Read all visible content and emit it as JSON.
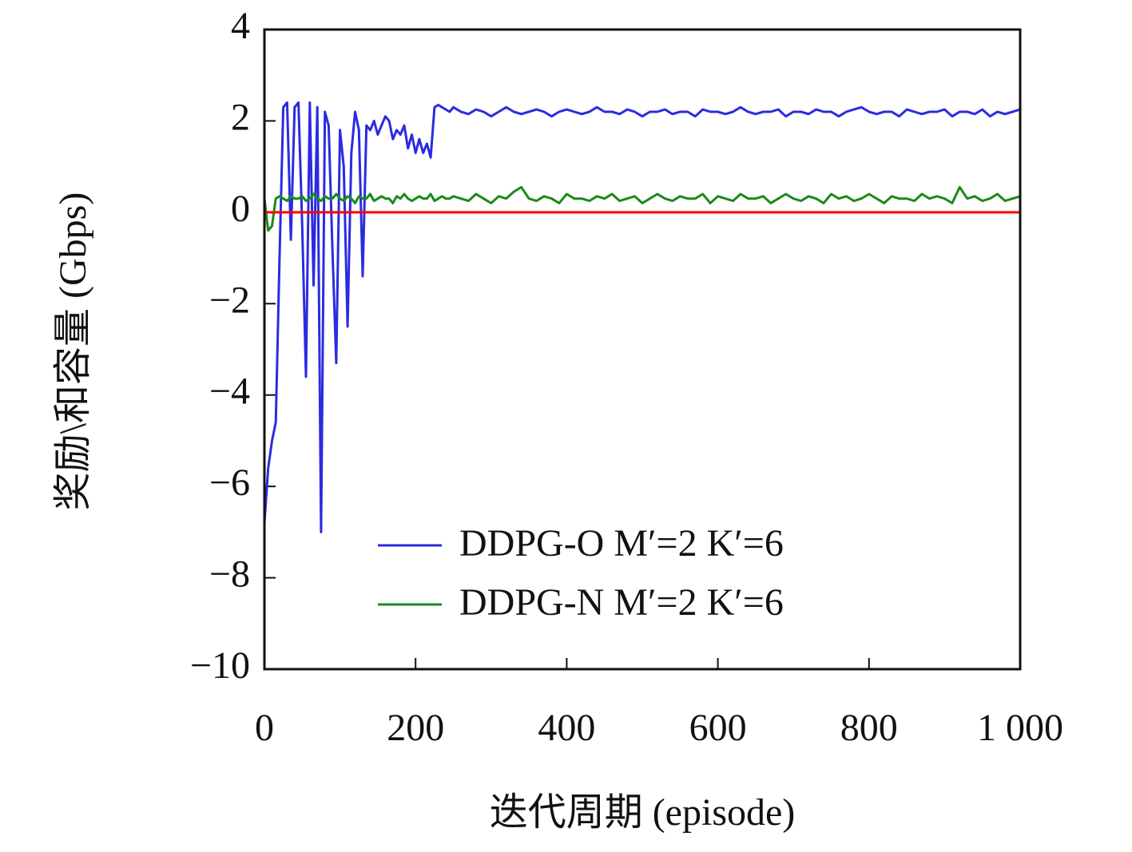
{
  "chart_data": {
    "type": "line",
    "xlabel": "迭代周期 (episode)",
    "ylabel": "奖励\\和容量 (Gbps)",
    "x": [
      0,
      5,
      10,
      15,
      20,
      25,
      30,
      35,
      40,
      45,
      50,
      55,
      60,
      65,
      70,
      75,
      80,
      85,
      90,
      95,
      100,
      105,
      110,
      115,
      120,
      125,
      130,
      135,
      140,
      145,
      150,
      155,
      160,
      165,
      170,
      175,
      180,
      185,
      190,
      195,
      200,
      205,
      210,
      215,
      220,
      225,
      230,
      235,
      240,
      245,
      250,
      260,
      270,
      280,
      290,
      300,
      310,
      320,
      330,
      340,
      350,
      360,
      370,
      380,
      390,
      400,
      410,
      420,
      430,
      440,
      450,
      460,
      470,
      480,
      490,
      500,
      510,
      520,
      530,
      540,
      550,
      560,
      570,
      580,
      590,
      600,
      610,
      620,
      630,
      640,
      650,
      660,
      670,
      680,
      690,
      700,
      710,
      720,
      730,
      740,
      750,
      760,
      770,
      780,
      790,
      800,
      810,
      820,
      830,
      840,
      850,
      860,
      870,
      880,
      890,
      900,
      910,
      920,
      930,
      940,
      950,
      960,
      970,
      980,
      990,
      1000
    ],
    "series": [
      {
        "name": "DDPG-O M′=2 K′=6",
        "color": "#2b2be0",
        "values": [
          -6.8,
          -5.6,
          -5.0,
          -4.6,
          -1.0,
          2.3,
          2.4,
          -0.6,
          2.3,
          2.4,
          -0.3,
          -3.6,
          2.4,
          -1.6,
          2.3,
          -7.0,
          2.2,
          1.9,
          -0.8,
          -3.3,
          1.8,
          1.0,
          -2.5,
          1.3,
          2.2,
          1.8,
          -1.4,
          1.9,
          1.8,
          2.0,
          1.7,
          1.9,
          2.1,
          2.0,
          1.6,
          1.8,
          1.7,
          1.9,
          1.4,
          1.7,
          1.3,
          1.6,
          1.3,
          1.5,
          1.2,
          2.3,
          2.35,
          2.3,
          2.25,
          2.2,
          2.3,
          2.2,
          2.15,
          2.25,
          2.2,
          2.1,
          2.2,
          2.3,
          2.2,
          2.15,
          2.2,
          2.25,
          2.2,
          2.1,
          2.2,
          2.25,
          2.2,
          2.15,
          2.2,
          2.3,
          2.2,
          2.2,
          2.15,
          2.25,
          2.2,
          2.1,
          2.2,
          2.2,
          2.25,
          2.15,
          2.2,
          2.2,
          2.1,
          2.25,
          2.2,
          2.2,
          2.15,
          2.2,
          2.3,
          2.2,
          2.15,
          2.2,
          2.2,
          2.25,
          2.1,
          2.2,
          2.2,
          2.15,
          2.25,
          2.2,
          2.2,
          2.1,
          2.2,
          2.25,
          2.3,
          2.2,
          2.15,
          2.2,
          2.2,
          2.1,
          2.25,
          2.2,
          2.15,
          2.2,
          2.2,
          2.25,
          2.1,
          2.2,
          2.2,
          2.15,
          2.25,
          2.1,
          2.2,
          2.15,
          2.2,
          2.25
        ]
      },
      {
        "name": "DDPG-N M′=2 K′=6",
        "color": "#1a8a1a",
        "values": [
          0.3,
          -0.4,
          -0.3,
          0.3,
          0.35,
          0.3,
          0.25,
          0.35,
          0.3,
          0.3,
          0.35,
          0.25,
          0.3,
          0.4,
          0.3,
          0.25,
          0.35,
          0.3,
          0.3,
          0.4,
          0.3,
          0.25,
          0.35,
          0.3,
          0.2,
          0.35,
          0.3,
          0.3,
          0.4,
          0.25,
          0.3,
          0.35,
          0.3,
          0.3,
          0.2,
          0.35,
          0.3,
          0.4,
          0.3,
          0.25,
          0.3,
          0.35,
          0.3,
          0.3,
          0.4,
          0.25,
          0.3,
          0.35,
          0.3,
          0.3,
          0.35,
          0.3,
          0.25,
          0.4,
          0.3,
          0.2,
          0.35,
          0.3,
          0.45,
          0.55,
          0.3,
          0.25,
          0.35,
          0.3,
          0.2,
          0.4,
          0.3,
          0.3,
          0.25,
          0.35,
          0.3,
          0.4,
          0.25,
          0.3,
          0.35,
          0.2,
          0.3,
          0.4,
          0.3,
          0.25,
          0.35,
          0.3,
          0.3,
          0.4,
          0.2,
          0.35,
          0.3,
          0.25,
          0.4,
          0.3,
          0.3,
          0.35,
          0.2,
          0.3,
          0.4,
          0.3,
          0.25,
          0.35,
          0.3,
          0.2,
          0.4,
          0.3,
          0.35,
          0.25,
          0.3,
          0.4,
          0.3,
          0.2,
          0.35,
          0.3,
          0.3,
          0.25,
          0.4,
          0.3,
          0.35,
          0.3,
          0.2,
          0.55,
          0.3,
          0.35,
          0.25,
          0.3,
          0.4,
          0.25,
          0.3,
          0.35
        ]
      }
    ],
    "reference_line": {
      "y": 0,
      "color": "#ff0000"
    },
    "xlim": [
      0,
      1000
    ],
    "xticks": [
      0,
      200,
      400,
      600,
      800,
      {
        "value": 1000,
        "label": "1 000"
      }
    ],
    "ylim": [
      -10,
      4
    ],
    "yticks": [
      {
        "value": -10,
        "label": "−10"
      },
      {
        "value": -8,
        "label": "−8"
      },
      {
        "value": -6,
        "label": "−6"
      },
      {
        "value": -4,
        "label": "−4"
      },
      {
        "value": -2,
        "label": "−2"
      },
      0,
      2,
      4
    ],
    "legend": "lower right"
  }
}
